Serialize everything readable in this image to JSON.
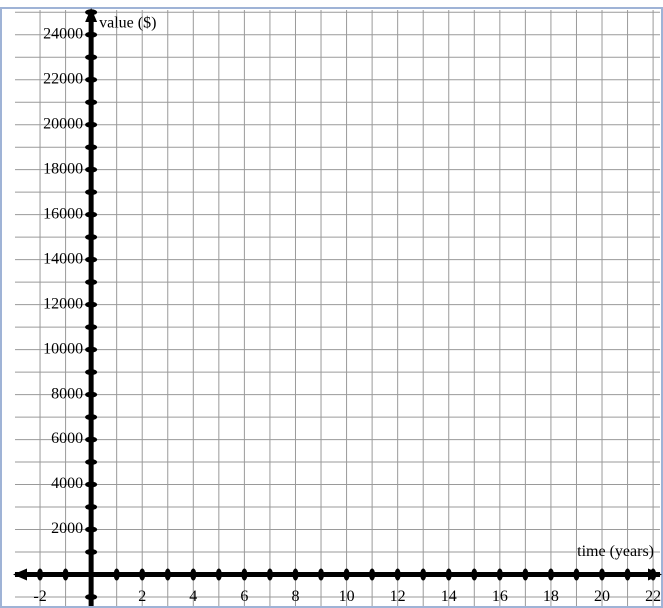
{
  "chart_data": {
    "type": "blank",
    "xlabel": "time (years)",
    "ylabel": "value ($)",
    "xlim": [
      -2.98,
      22.27
    ],
    "ylim": [
      -1400,
      25100
    ],
    "xticks": [
      -2,
      2,
      4,
      6,
      8,
      10,
      12,
      14,
      16,
      18,
      20,
      22
    ],
    "yticks": [
      2000,
      4000,
      6000,
      8000,
      10000,
      12000,
      14000,
      16000,
      18000,
      20000,
      22000,
      24000
    ],
    "x_grid_step": 1,
    "y_grid_step": 1000,
    "grid": true
  }
}
